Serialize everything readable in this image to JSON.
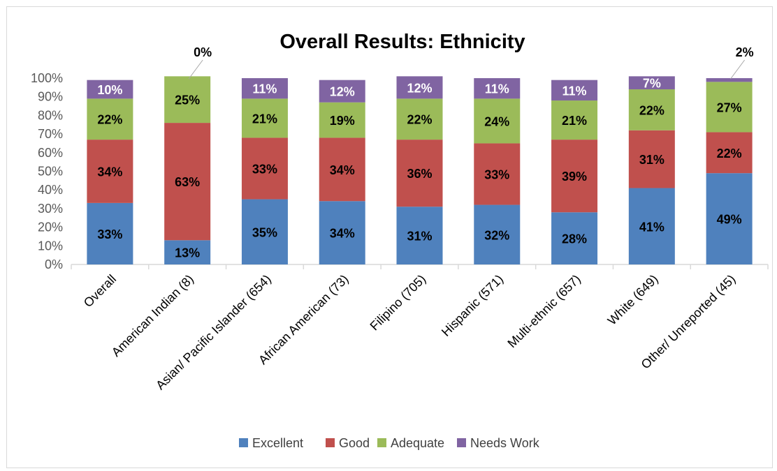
{
  "chart_data": {
    "type": "bar",
    "stacked": true,
    "title": "Overall Results: Ethnicity",
    "xlabel": "",
    "ylabel": "",
    "ylim": [
      0,
      100
    ],
    "yticks": [
      "0%",
      "10%",
      "20%",
      "30%",
      "40%",
      "50%",
      "60%",
      "70%",
      "80%",
      "90%",
      "100%"
    ],
    "categories": [
      "Overall",
      "American Indian (8)",
      "Asian/ Pacific Islander (654)",
      "African American (73)",
      "Filipino (705)",
      "Hispanic (571)",
      "Multi-ethnic (657)",
      "White (649)",
      "Other/ Unreported (45)"
    ],
    "series": [
      {
        "name": "Excellent",
        "color": "#4f81bd",
        "values": [
          33,
          13,
          35,
          34,
          31,
          32,
          28,
          41,
          49
        ],
        "labels": [
          "33%",
          "13%",
          "35%",
          "34%",
          "31%",
          "32%",
          "28%",
          "41%",
          "49%"
        ],
        "label_color": "#000000"
      },
      {
        "name": "Good",
        "color": "#c0504d",
        "values": [
          34,
          63,
          33,
          34,
          36,
          33,
          39,
          31,
          22
        ],
        "labels": [
          "34%",
          "63%",
          "33%",
          "34%",
          "36%",
          "33%",
          "39%",
          "31%",
          "22%"
        ],
        "label_color": "#000000"
      },
      {
        "name": "Adequate",
        "color": "#9bbb59",
        "values": [
          22,
          25,
          21,
          19,
          22,
          24,
          21,
          22,
          27
        ],
        "labels": [
          "22%",
          "25%",
          "21%",
          "19%",
          "22%",
          "24%",
          "21%",
          "22%",
          "27%"
        ],
        "label_color": "#000000"
      },
      {
        "name": "Needs Work",
        "color": "#8064a2",
        "values": [
          10,
          0,
          11,
          12,
          12,
          11,
          11,
          7,
          2
        ],
        "labels": [
          "10%",
          "0%",
          "11%",
          "12%",
          "12%",
          "11%",
          "11%",
          "7%",
          "2%"
        ],
        "label_color": "#ffffff"
      }
    ],
    "callouts": [
      {
        "category_index": 1,
        "series_index": 3,
        "text": "0%"
      },
      {
        "category_index": 8,
        "series_index": 3,
        "text": "2%"
      }
    ],
    "grid": false,
    "legend_position": "bottom"
  }
}
